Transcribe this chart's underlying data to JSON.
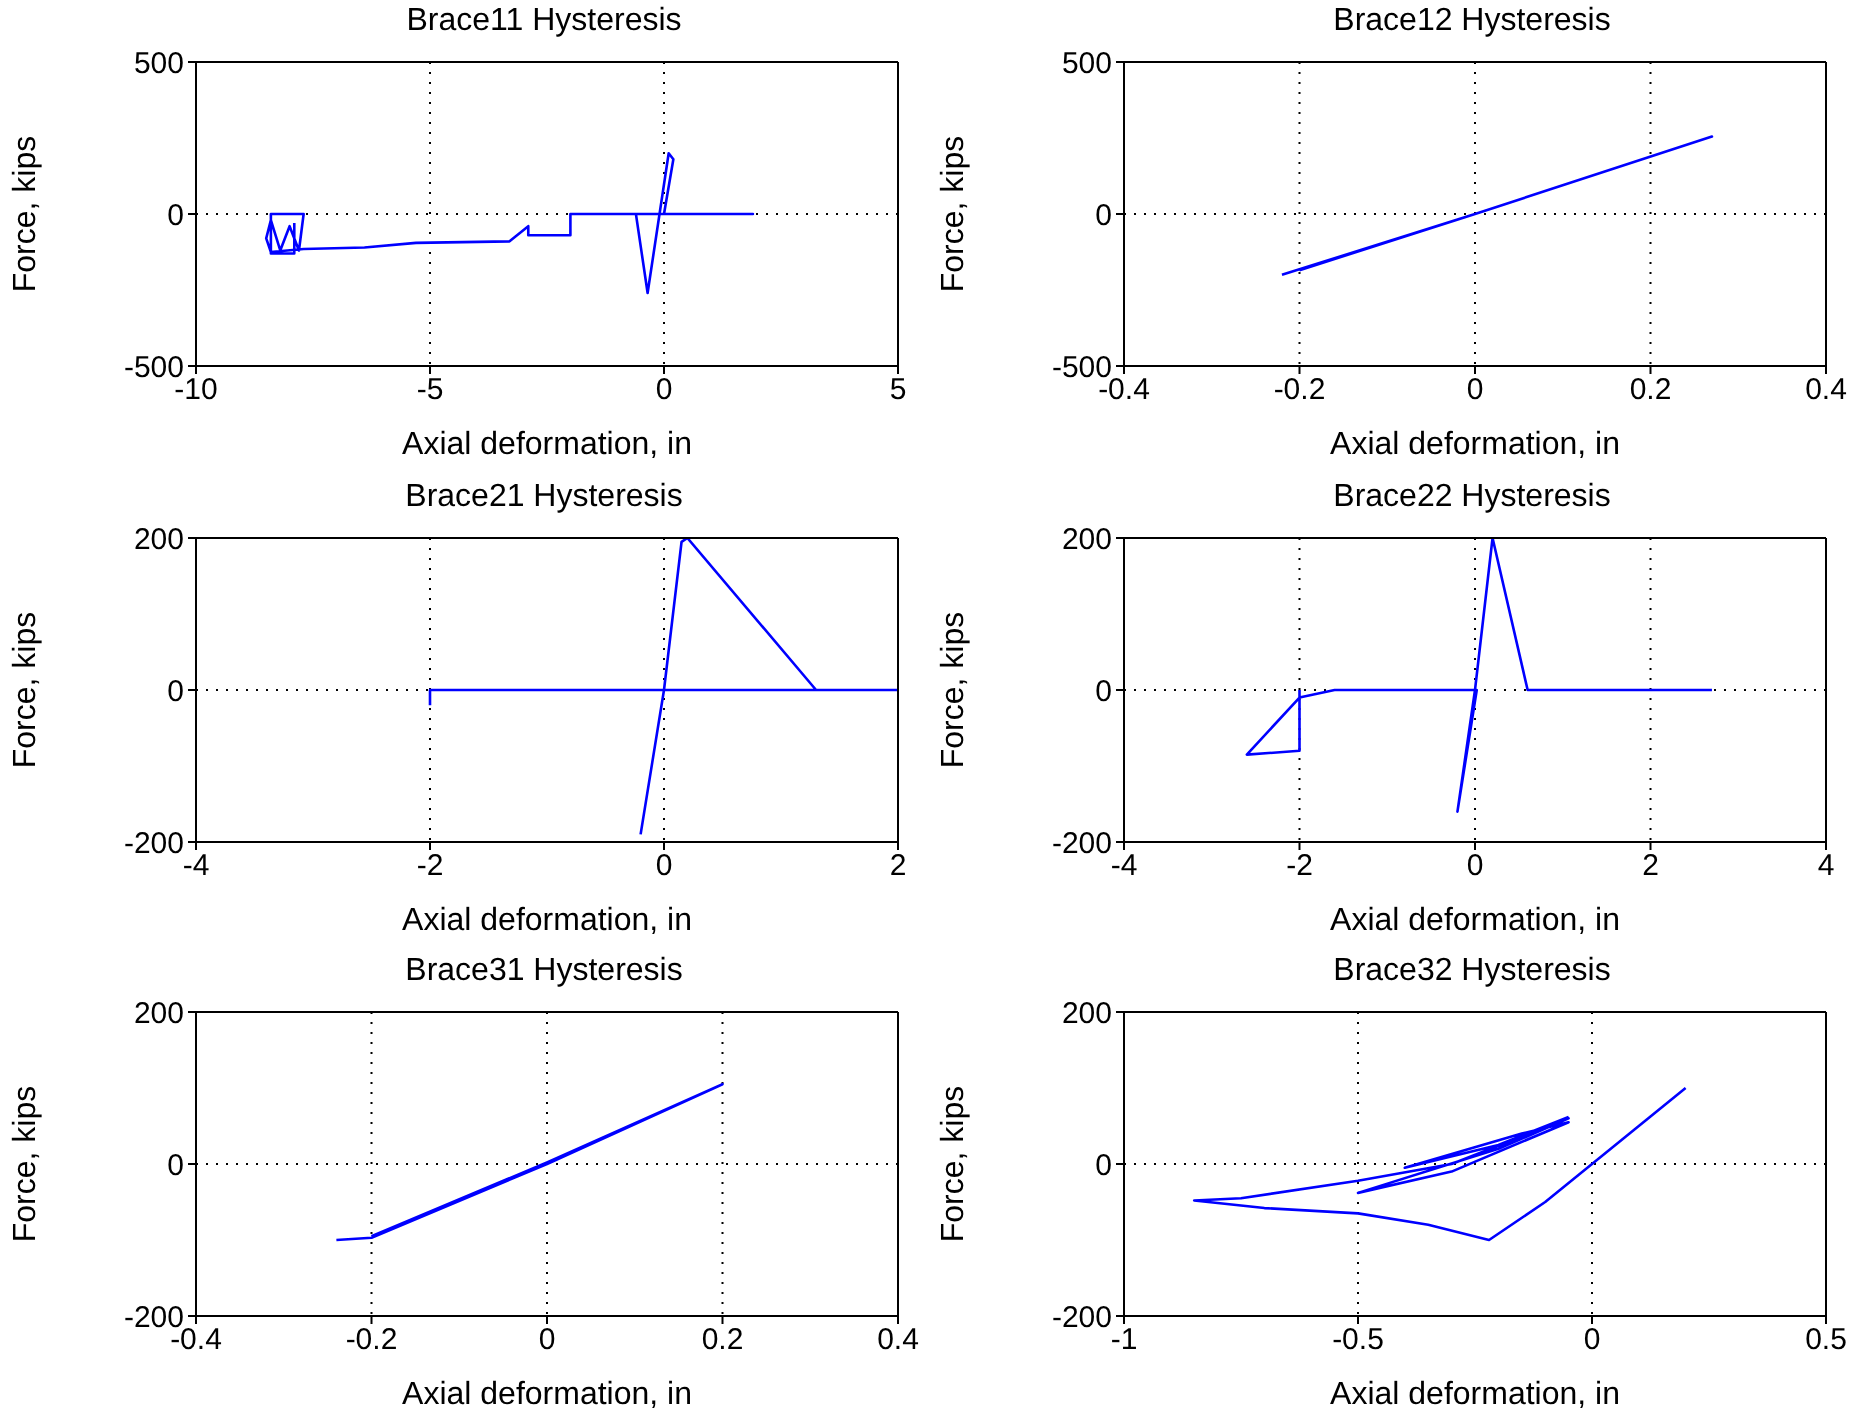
{
  "chart_data": [
    {
      "type": "line",
      "title": "Brace11 Hysteresis",
      "xlabel": "Axial deformation, in",
      "ylabel": "Force, kips",
      "xlim": [
        -10,
        5
      ],
      "xticks": [
        -10,
        -5,
        0,
        5
      ],
      "ylim": [
        -500,
        500
      ],
      "yticks": [
        -500,
        0,
        500
      ],
      "grid": true,
      "series": [
        {
          "color": "#0000ff",
          "x": [
            0,
            -0.6,
            -0.35,
            0.1,
            0.2,
            0,
            1.9,
            -2,
            -2,
            -2.9,
            -2.9,
            -3.3,
            -5.3,
            -6.4,
            -7.7,
            -8.4,
            -8.5,
            -8.4,
            -8.2,
            -8.0,
            -7.8,
            -7.7,
            -8.4,
            -8.4,
            -7.9,
            -7.9
          ],
          "values": [
            0,
            0,
            -260,
            200,
            180,
            0,
            0,
            0,
            -70,
            -70,
            -40,
            -90,
            -95,
            -110,
            -115,
            -125,
            -80,
            -20,
            -120,
            -40,
            -120,
            0,
            0,
            -130,
            -130,
            -30
          ]
        }
      ]
    },
    {
      "type": "line",
      "title": "Brace12 Hysteresis",
      "xlabel": "Axial deformation, in",
      "ylabel": "Force, kips",
      "xlim": [
        -0.4,
        0.4
      ],
      "xticks": [
        -0.4,
        -0.2,
        0,
        0.2,
        0.4
      ],
      "ylim": [
        -500,
        500
      ],
      "yticks": [
        -500,
        0,
        500
      ],
      "grid": true,
      "series": [
        {
          "color": "#0000ff",
          "x": [
            -0.22,
            0,
            0.27,
            0,
            -0.2
          ],
          "values": [
            -200,
            0,
            255,
            0,
            -185
          ]
        }
      ]
    },
    {
      "type": "line",
      "title": "Brace21 Hysteresis",
      "xlabel": "Axial deformation, in",
      "ylabel": "Force, kips",
      "xlim": [
        -4,
        2
      ],
      "xticks": [
        -4,
        -2,
        0,
        2
      ],
      "ylim": [
        -200,
        200
      ],
      "yticks": [
        -200,
        0,
        200
      ],
      "grid": true,
      "series": [
        {
          "color": "#0000ff",
          "x": [
            -2,
            -2,
            2,
            1.3,
            0.2,
            0.15,
            0,
            -0.2
          ],
          "values": [
            -20,
            0,
            0,
            0,
            200,
            195,
            0,
            -190
          ]
        }
      ]
    },
    {
      "type": "line",
      "title": "Brace22 Hysteresis",
      "xlabel": "Axial deformation, in",
      "ylabel": "Force, kips",
      "xlim": [
        -4,
        4
      ],
      "xticks": [
        -4,
        -2,
        0,
        2,
        4
      ],
      "ylim": [
        -200,
        200
      ],
      "yticks": [
        -200,
        0,
        200
      ],
      "grid": true,
      "series": [
        {
          "color": "#0000ff",
          "x": [
            2.7,
            0.6,
            0.2,
            0,
            -0.2,
            0.02,
            -1.6,
            -2,
            -2.6,
            -2,
            -2
          ],
          "values": [
            0,
            0,
            200,
            0,
            -160,
            0,
            0,
            -10,
            -85,
            -80,
            0
          ]
        }
      ]
    },
    {
      "type": "line",
      "title": "Brace31 Hysteresis",
      "xlabel": "Axial deformation, in",
      "ylabel": "Force, kips",
      "xlim": [
        -0.4,
        0.4
      ],
      "xticks": [
        -0.4,
        -0.2,
        0,
        0.2,
        0.4
      ],
      "ylim": [
        -200,
        200
      ],
      "yticks": [
        -200,
        0,
        200
      ],
      "grid": true,
      "series": [
        {
          "color": "#0000ff",
          "x": [
            -0.24,
            -0.2,
            0,
            0.2,
            0,
            -0.2
          ],
          "values": [
            -100,
            -97,
            0,
            105,
            2,
            -95
          ]
        }
      ]
    },
    {
      "type": "line",
      "title": "Brace32 Hysteresis",
      "xlabel": "Axial deformation, in",
      "ylabel": "Force, kips",
      "xlim": [
        -1,
        0.5
      ],
      "xticks": [
        -1,
        -0.5,
        0,
        0.5
      ],
      "ylim": [
        -200,
        200
      ],
      "yticks": [
        -200,
        0,
        200
      ],
      "grid": true,
      "series": [
        {
          "color": "#0000ff",
          "x": [
            0.2,
            0,
            -0.1,
            -0.22,
            -0.35,
            -0.5,
            -0.7,
            -0.85,
            -0.75,
            -0.5,
            -0.3,
            -0.05,
            -0.2,
            -0.5,
            -0.3,
            -0.05,
            -0.15,
            -0.4,
            -0.2,
            -0.05
          ],
          "values": [
            100,
            0,
            -50,
            -100,
            -80,
            -65,
            -58,
            -48,
            -45,
            -22,
            0,
            60,
            20,
            -38,
            -10,
            55,
            40,
            -5,
            25,
            62
          ]
        }
      ]
    }
  ]
}
